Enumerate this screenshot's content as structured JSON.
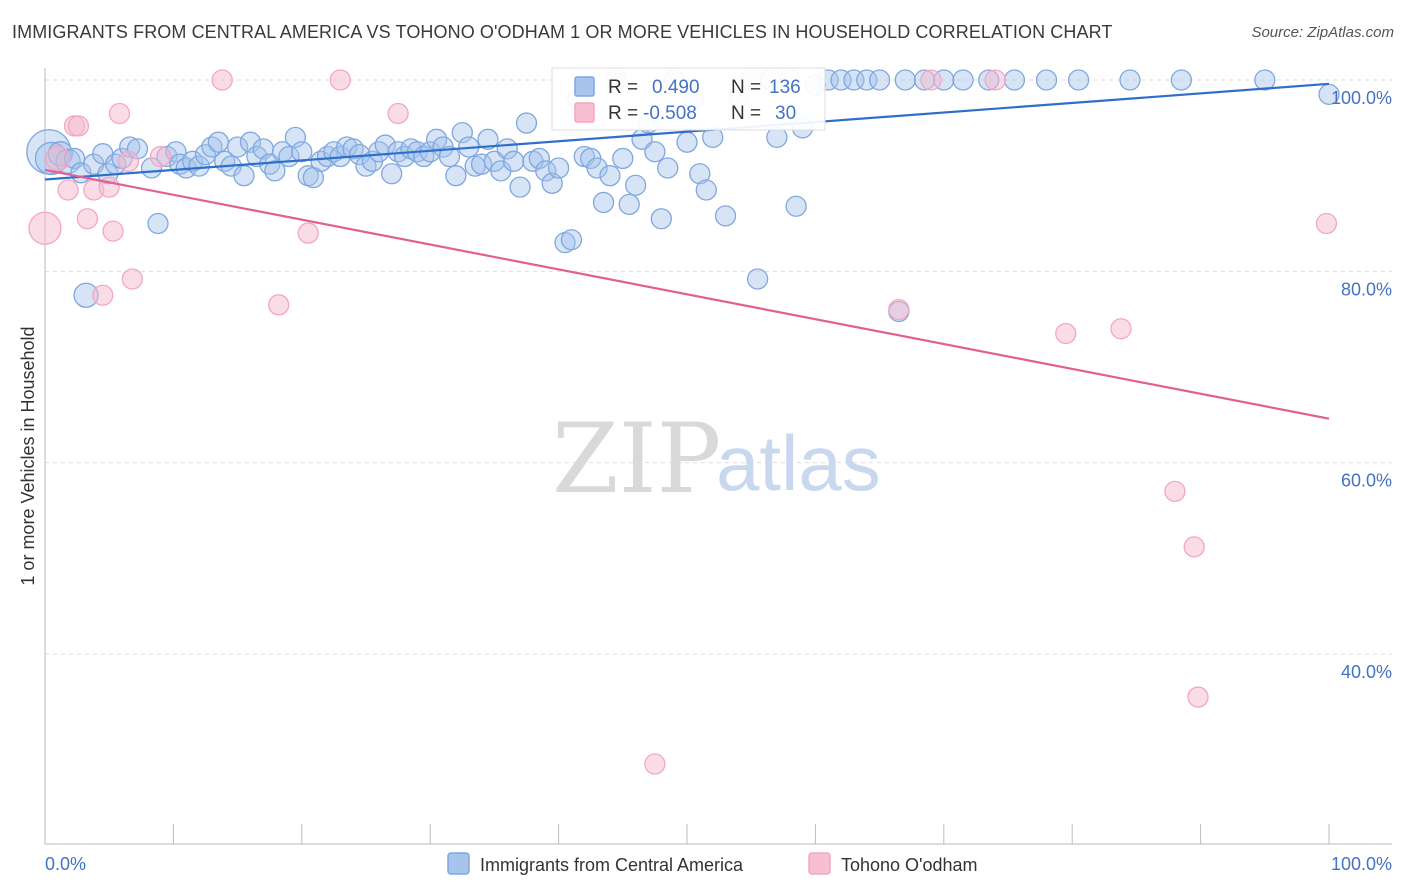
{
  "header": {
    "title": "IMMIGRANTS FROM CENTRAL AMERICA VS TOHONO O'ODHAM 1 OR MORE VEHICLES IN HOUSEHOLD CORRELATION CHART",
    "source": "Source: ZipAtlas.com"
  },
  "watermark": {
    "zip": "ZIP",
    "atlas": "atlas"
  },
  "stats": {
    "r_label": "R =",
    "n_label": "N =",
    "rows": [
      {
        "r": "0.490",
        "n": "136"
      },
      {
        "r": "-0.508",
        "n": "30"
      }
    ]
  },
  "chart_data": {
    "type": "scatter",
    "title": "IMMIGRANTS FROM CENTRAL AMERICA VS TOHONO O'ODHAM 1 OR MORE VEHICLES IN HOUSEHOLD CORRELATION CHART",
    "xlabel": "",
    "ylabel": "1 or more Vehicles in Household",
    "xlim": [
      0,
      100
    ],
    "ylim": [
      20,
      102
    ],
    "x_tick_labels": [
      "0.0%",
      "100.0%"
    ],
    "y_ticks": [
      {
        "value": 100,
        "label": "100.0%"
      },
      {
        "value": 80,
        "label": "80.0%"
      },
      {
        "value": 60,
        "label": "60.0%"
      },
      {
        "value": 40,
        "label": "40.0%"
      }
    ],
    "grid": true,
    "legend_position": "bottom-center",
    "series": [
      {
        "name": "Immigrants from Central America",
        "color": "#7fa7e0",
        "line_color": "#2e6fcc",
        "trend": [
          [
            0,
            89.6
          ],
          [
            100,
            99.6
          ]
        ],
        "points": [
          [
            0.3,
            92.5,
            22
          ],
          [
            0.5,
            91.8,
            16
          ],
          [
            1.2,
            92.3,
            12
          ],
          [
            1.8,
            91.5,
            12
          ],
          [
            2.3,
            91.8,
            10
          ],
          [
            2.8,
            90.3,
            10
          ],
          [
            3.2,
            77.5,
            12
          ],
          [
            3.8,
            91.2,
            10
          ],
          [
            4.5,
            92.3,
            10
          ],
          [
            4.9,
            90.2,
            10
          ],
          [
            5.5,
            91.2,
            10
          ],
          [
            6.0,
            91.8,
            10
          ],
          [
            6.6,
            93.0,
            10
          ],
          [
            7.2,
            92.8,
            10
          ],
          [
            8.3,
            90.8,
            10
          ],
          [
            8.8,
            85.0,
            10
          ],
          [
            9.5,
            92.0,
            10
          ],
          [
            10.2,
            92.5,
            10
          ],
          [
            10.5,
            91.2,
            10
          ],
          [
            11.0,
            90.8,
            10
          ],
          [
            11.5,
            91.5,
            10
          ],
          [
            12.0,
            91.0,
            10
          ],
          [
            12.5,
            92.2,
            10
          ],
          [
            13.0,
            93.0,
            10
          ],
          [
            13.5,
            93.5,
            10
          ],
          [
            14.0,
            91.5,
            10
          ],
          [
            14.5,
            91.0,
            10
          ],
          [
            15.0,
            93.0,
            10
          ],
          [
            15.5,
            90.0,
            10
          ],
          [
            16.0,
            93.5,
            10
          ],
          [
            16.5,
            92.0,
            10
          ],
          [
            17.0,
            92.8,
            10
          ],
          [
            17.5,
            91.2,
            10
          ],
          [
            17.9,
            90.5,
            10
          ],
          [
            18.5,
            92.5,
            10
          ],
          [
            19.0,
            92.0,
            10
          ],
          [
            19.5,
            94.0,
            10
          ],
          [
            20.0,
            92.5,
            10
          ],
          [
            20.5,
            90.0,
            10
          ],
          [
            20.9,
            89.8,
            10
          ],
          [
            21.5,
            91.5,
            10
          ],
          [
            22.0,
            92.0,
            10
          ],
          [
            22.5,
            92.5,
            10
          ],
          [
            23.0,
            92.0,
            10
          ],
          [
            23.5,
            93.0,
            10
          ],
          [
            24.0,
            92.8,
            10
          ],
          [
            24.5,
            92.2,
            10
          ],
          [
            25.0,
            91.0,
            10
          ],
          [
            25.5,
            91.5,
            10
          ],
          [
            26.0,
            92.5,
            10
          ],
          [
            26.5,
            93.2,
            10
          ],
          [
            27.0,
            90.2,
            10
          ],
          [
            27.5,
            92.5,
            10
          ],
          [
            28.0,
            92.0,
            10
          ],
          [
            28.5,
            92.8,
            10
          ],
          [
            29.0,
            92.5,
            10
          ],
          [
            29.5,
            92.0,
            10
          ],
          [
            30.0,
            92.5,
            10
          ],
          [
            30.5,
            93.8,
            10
          ],
          [
            31.0,
            93.0,
            10
          ],
          [
            31.5,
            92.0,
            10
          ],
          [
            32.0,
            90.0,
            10
          ],
          [
            32.5,
            94.5,
            10
          ],
          [
            33.0,
            93.0,
            10
          ],
          [
            33.5,
            91.0,
            10
          ],
          [
            34.0,
            91.2,
            10
          ],
          [
            34.5,
            93.8,
            10
          ],
          [
            35.0,
            91.5,
            10
          ],
          [
            35.5,
            90.5,
            10
          ],
          [
            36.0,
            92.8,
            10
          ],
          [
            36.5,
            91.5,
            10
          ],
          [
            37.0,
            88.8,
            10
          ],
          [
            37.5,
            95.5,
            10
          ],
          [
            38.0,
            91.5,
            10
          ],
          [
            38.5,
            91.8,
            10
          ],
          [
            39.0,
            90.5,
            10
          ],
          [
            39.5,
            89.2,
            10
          ],
          [
            40.0,
            90.8,
            10
          ],
          [
            40.5,
            83.0,
            10
          ],
          [
            41.0,
            83.3,
            10
          ],
          [
            41.5,
            98.0,
            10
          ],
          [
            42.0,
            92.0,
            10
          ],
          [
            42.5,
            91.8,
            10
          ],
          [
            43.0,
            90.8,
            10
          ],
          [
            43.5,
            87.2,
            10
          ],
          [
            44.0,
            90.0,
            10
          ],
          [
            44.5,
            100.0,
            10
          ],
          [
            45.0,
            91.8,
            10
          ],
          [
            45.5,
            87.0,
            10
          ],
          [
            46.0,
            89.0,
            10
          ],
          [
            46.5,
            93.8,
            10
          ],
          [
            47.0,
            95.5,
            10
          ],
          [
            47.5,
            92.5,
            10
          ],
          [
            48.0,
            85.5,
            10
          ],
          [
            48.5,
            90.8,
            10
          ],
          [
            49.0,
            100.0,
            10
          ],
          [
            50.0,
            93.5,
            10
          ],
          [
            50.5,
            98.0,
            10
          ],
          [
            51.0,
            90.2,
            10
          ],
          [
            51.5,
            88.5,
            10
          ],
          [
            52.0,
            94.0,
            10
          ],
          [
            53.0,
            85.8,
            10
          ],
          [
            54.0,
            98.2,
            10
          ],
          [
            55.0,
            100.0,
            10
          ],
          [
            55.5,
            79.2,
            10
          ],
          [
            56.5,
            100.0,
            10
          ],
          [
            57.0,
            94.0,
            10
          ],
          [
            58.0,
            100.0,
            10
          ],
          [
            58.5,
            86.8,
            10
          ],
          [
            59.0,
            95.0,
            10
          ],
          [
            60.0,
            99.5,
            10
          ],
          [
            61.0,
            100.0,
            10
          ],
          [
            62.0,
            100.0,
            10
          ],
          [
            63.0,
            100.0,
            10
          ],
          [
            64.0,
            100.0,
            10
          ],
          [
            65.0,
            100.0,
            10
          ],
          [
            66.5,
            75.8,
            10
          ],
          [
            67.0,
            100.0,
            10
          ],
          [
            68.5,
            100.0,
            10
          ],
          [
            70.0,
            100.0,
            10
          ],
          [
            71.5,
            100.0,
            10
          ],
          [
            73.5,
            100.0,
            10
          ],
          [
            75.5,
            100.0,
            10
          ],
          [
            78.0,
            100.0,
            10
          ],
          [
            80.5,
            100.0,
            10
          ],
          [
            84.5,
            100.0,
            10
          ],
          [
            88.5,
            100.0,
            10
          ],
          [
            95.0,
            100.0,
            10
          ],
          [
            100.0,
            98.5,
            10
          ]
        ]
      },
      {
        "name": "Tohono O'odham",
        "color": "#f4a6bf",
        "line_color": "#e0608f",
        "trend": [
          [
            0,
            90.6
          ],
          [
            100,
            64.6
          ]
        ],
        "points": [
          [
            0.0,
            84.5,
            16
          ],
          [
            1.0,
            91.8,
            12
          ],
          [
            1.8,
            88.5,
            10
          ],
          [
            2.3,
            95.2,
            10
          ],
          [
            2.6,
            95.2,
            10
          ],
          [
            3.3,
            85.5,
            10
          ],
          [
            3.8,
            88.5,
            10
          ],
          [
            4.5,
            77.5,
            10
          ],
          [
            5.0,
            88.8,
            10
          ],
          [
            5.3,
            84.2,
            10
          ],
          [
            5.8,
            96.5,
            10
          ],
          [
            6.5,
            91.5,
            10
          ],
          [
            6.8,
            79.2,
            10
          ],
          [
            9.0,
            92.0,
            10
          ],
          [
            13.8,
            100.0,
            10
          ],
          [
            18.2,
            76.5,
            10
          ],
          [
            20.5,
            84.0,
            10
          ],
          [
            23.0,
            100.0,
            10
          ],
          [
            27.5,
            96.5,
            10
          ],
          [
            47.5,
            28.5,
            10
          ],
          [
            66.5,
            76.0,
            10
          ],
          [
            69.0,
            100.0,
            10
          ],
          [
            74.0,
            100.0,
            10
          ],
          [
            79.5,
            73.5,
            10
          ],
          [
            83.8,
            74.0,
            10
          ],
          [
            88.0,
            57.0,
            10
          ],
          [
            89.5,
            51.2,
            10
          ],
          [
            89.8,
            35.5,
            10
          ],
          [
            99.8,
            85.0,
            10
          ]
        ]
      }
    ]
  }
}
